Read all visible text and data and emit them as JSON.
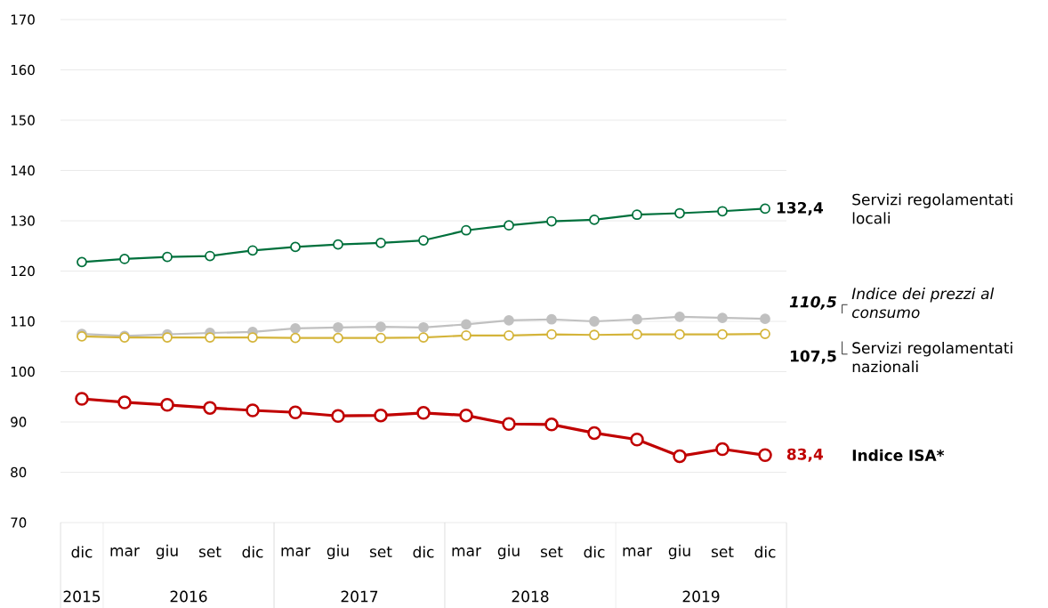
{
  "chart_data": {
    "type": "line",
    "categories": [
      "dic",
      "mar",
      "giu",
      "set",
      "dic",
      "mar",
      "giu",
      "set",
      "dic",
      "mar",
      "giu",
      "set",
      "dic",
      "mar",
      "giu",
      "set",
      "dic"
    ],
    "annotations": [
      "2015",
      "2016",
      "2017",
      "2018",
      "2019"
    ],
    "ylim": [
      70,
      170
    ],
    "yticks": [
      70,
      80,
      90,
      100,
      110,
      120,
      130,
      140,
      150,
      160,
      170
    ],
    "grid": "y",
    "legend": false,
    "marker": "circle",
    "line_style": "solid",
    "series": [
      {
        "name": "Servizi regolamentati locali",
        "color": "#00703c",
        "values": [
          121.8,
          122.4,
          122.8,
          123.0,
          124.1,
          124.8,
          125.3,
          125.6,
          126.1,
          128.1,
          129.1,
          129.9,
          130.2,
          131.2,
          131.5,
          131.9,
          132.4
        ],
        "value_labels": [
          null,
          null,
          null,
          null,
          null,
          null,
          null,
          null,
          null,
          null,
          null,
          null,
          null,
          null,
          null,
          null,
          "132,4"
        ]
      },
      {
        "name": "Indice dei prezzi al consumo",
        "color": "#c0c0c0",
        "values": [
          107.5,
          107.1,
          107.4,
          107.7,
          107.9,
          108.6,
          108.8,
          108.9,
          108.8,
          109.4,
          110.2,
          110.4,
          110.0,
          110.4,
          110.9,
          110.7,
          110.5
        ],
        "value_labels": [
          null,
          null,
          null,
          null,
          null,
          null,
          null,
          null,
          null,
          null,
          null,
          null,
          null,
          null,
          null,
          null,
          "110,5"
        ]
      },
      {
        "name": "Servizi regolamentati nazionali",
        "color": "#d4b43a",
        "values": [
          107.0,
          106.8,
          106.8,
          106.8,
          106.8,
          106.7,
          106.7,
          106.7,
          106.8,
          107.2,
          107.2,
          107.4,
          107.3,
          107.4,
          107.4,
          107.4,
          107.5
        ],
        "value_labels": [
          null,
          null,
          null,
          null,
          null,
          null,
          null,
          null,
          null,
          null,
          null,
          null,
          null,
          null,
          null,
          null,
          "107,5"
        ]
      },
      {
        "name": "Indice ISA*",
        "color": "#c00000",
        "values": [
          94.6,
          93.9,
          93.4,
          92.8,
          92.3,
          91.9,
          91.2,
          91.3,
          91.8,
          91.3,
          89.6,
          89.5,
          87.8,
          86.5,
          83.2,
          84.6,
          83.4
        ],
        "value_labels": [
          null,
          null,
          null,
          null,
          null,
          null,
          null,
          null,
          null,
          null,
          null,
          null,
          null,
          null,
          null,
          null,
          "83,4"
        ]
      }
    ]
  }
}
